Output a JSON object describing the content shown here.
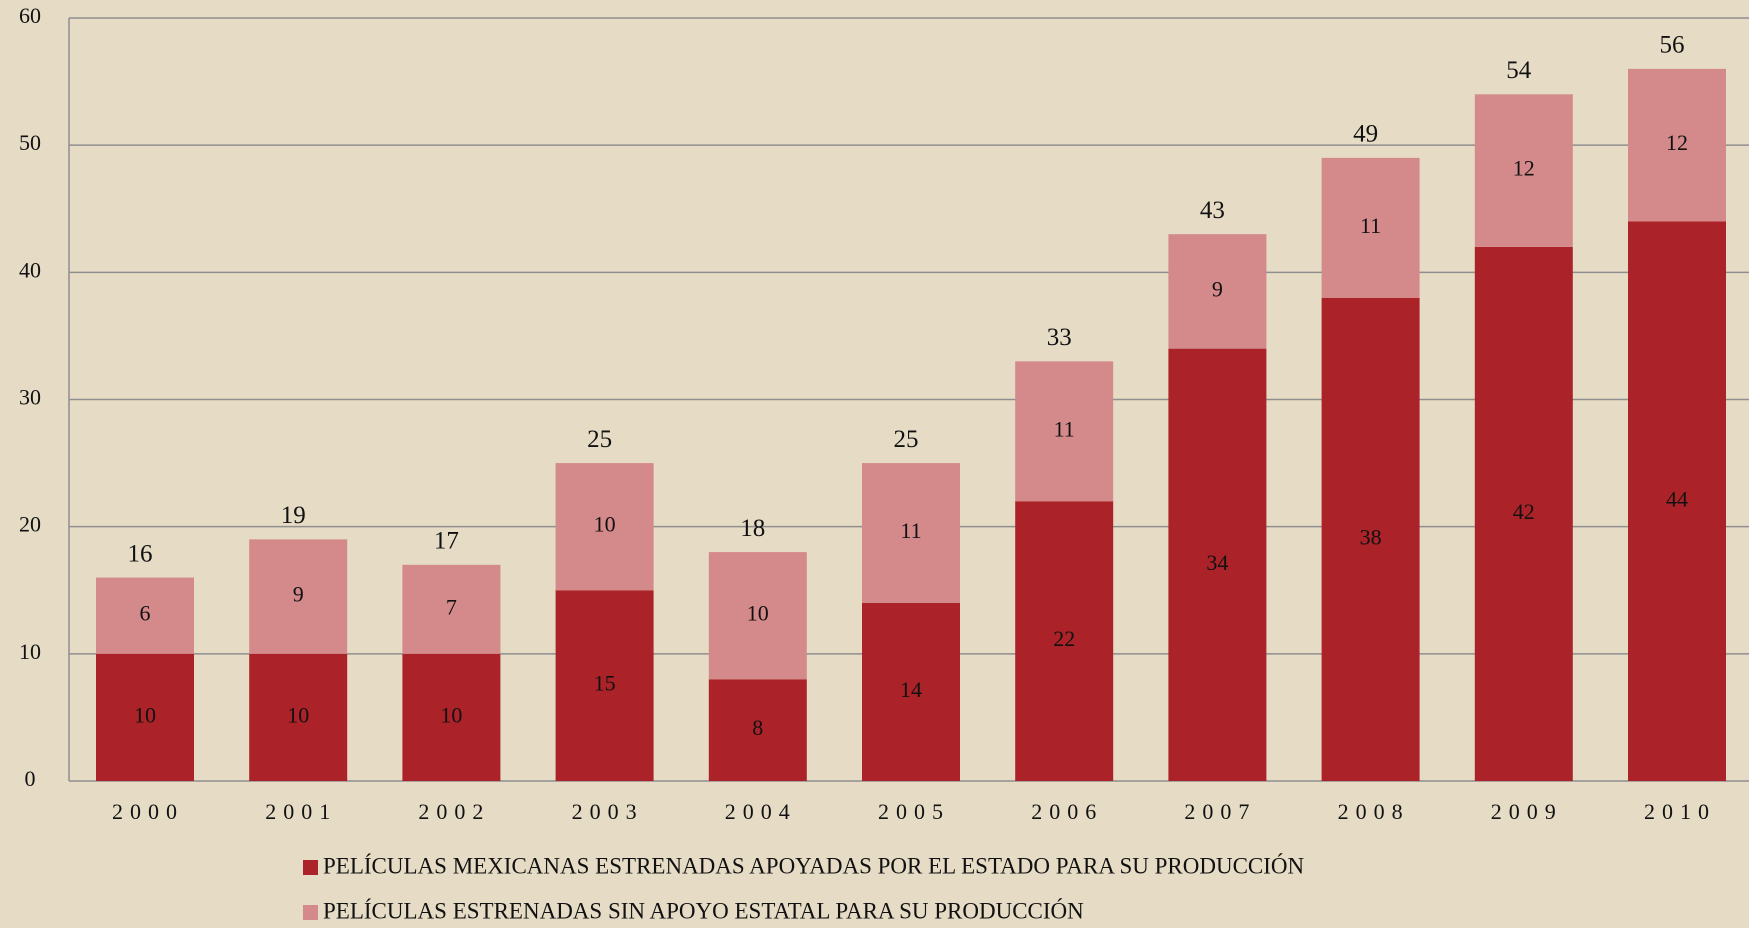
{
  "chart_data": {
    "type": "stacked_bar",
    "categories": [
      "2000",
      "2001",
      "2002",
      "2003",
      "2004",
      "2005",
      "2006",
      "2007",
      "2008",
      "2009",
      "2010"
    ],
    "series": [
      {
        "name": "PELÍCULAS MEXICANAS ESTRENADAS APOYADAS POR EL ESTADO PARA SU PRODUCCIÓN",
        "color": "#ab2328",
        "values": [
          10,
          10,
          10,
          15,
          8,
          14,
          22,
          34,
          38,
          42,
          44
        ]
      },
      {
        "name": "PELÍCULAS ESTRENADAS SIN APOYO ESTATAL PARA SU PRODUCCIÓN",
        "color": "#d4898a",
        "values": [
          6,
          9,
          7,
          10,
          10,
          11,
          11,
          9,
          11,
          12,
          12
        ]
      }
    ],
    "totals": [
      16,
      19,
      17,
      25,
      18,
      25,
      33,
      43,
      49,
      54,
      56
    ],
    "ylim": [
      0,
      60
    ],
    "yticks": [
      0,
      10,
      20,
      30,
      40,
      50,
      60
    ],
    "grid": true,
    "legend": "bottom"
  }
}
